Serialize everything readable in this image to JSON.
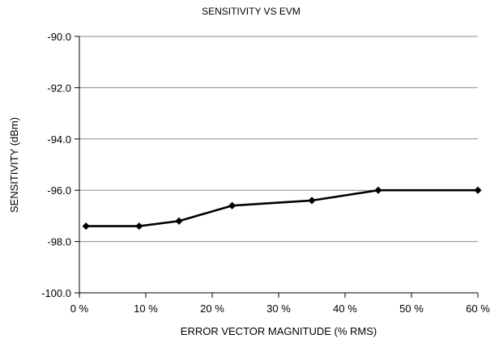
{
  "chart_data": {
    "type": "line",
    "title": "SENSITIVITY VS EVM",
    "xlabel": "ERROR VECTOR MAGNITUDE (% RMS)",
    "ylabel": "SENSITIVITY (dBm)",
    "xlim": [
      0,
      60
    ],
    "ylim": [
      -100,
      -90
    ],
    "x_ticks": [
      0,
      10,
      20,
      30,
      40,
      50,
      60
    ],
    "x_tick_labels": [
      "0 %",
      "10 %",
      "20 %",
      "30 %",
      "40 %",
      "50 %",
      "60 %"
    ],
    "y_ticks": [
      -90,
      -92,
      -94,
      -96,
      -98,
      -100
    ],
    "y_tick_labels": [
      "-90.0",
      "-92.0",
      "-94.0",
      "-96.0",
      "-98.0",
      "-100.0"
    ],
    "grid": {
      "horizontal": true,
      "vertical": false
    },
    "legend": "none",
    "series": [
      {
        "x": [
          1,
          9,
          15,
          23,
          35,
          45,
          60
        ],
        "y": [
          -97.4,
          -97.4,
          -97.2,
          -96.6,
          -96.4,
          -96.0,
          -96.0
        ],
        "marker": "diamond",
        "color": "#000000"
      }
    ]
  }
}
